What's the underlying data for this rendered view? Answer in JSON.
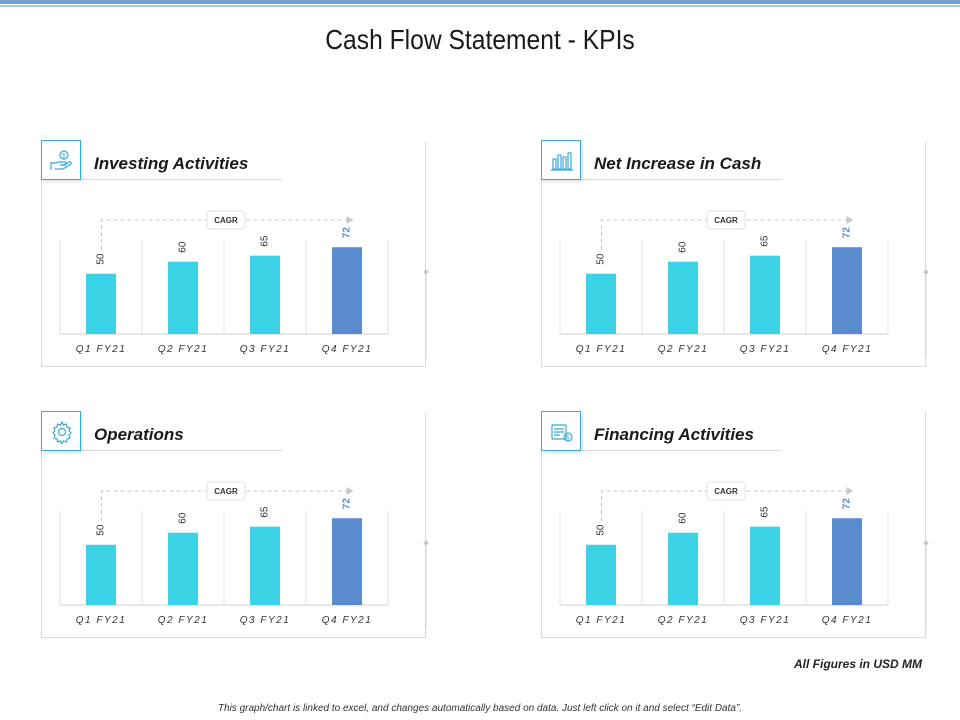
{
  "page": {
    "title": "Cash Flow Statement - KPIs",
    "footer_note": "All Figures in USD MM",
    "disclaimer": "This graph/chart is linked to excel, and changes automatically based on data. Just left click on it and select “Edit Data”."
  },
  "colors": {
    "bar": "#3dd3e6",
    "highlight": "#5b8bcf",
    "accent_border": "#3aa9d9"
  },
  "panels": [
    {
      "title": "Investing Activities",
      "icon": "hand-coin-icon",
      "cagr_label": "CAGR"
    },
    {
      "title": "Net Increase in Cash",
      "icon": "bar-graph-icon",
      "cagr_label": "CAGR"
    },
    {
      "title": "Operations",
      "icon": "gear-icon",
      "cagr_label": "CAGR"
    },
    {
      "title": "Financing Activities",
      "icon": "register-coin-icon",
      "cagr_label": "CAGR"
    }
  ],
  "chart_data": [
    {
      "type": "bar",
      "title": "Investing Activities",
      "categories": [
        "Q1 FY21",
        "Q2 FY21",
        "Q3 FY21",
        "Q4 FY21"
      ],
      "values": [
        50,
        60,
        65,
        72
      ],
      "highlight_index": 3,
      "ylim": [
        0,
        100
      ]
    },
    {
      "type": "bar",
      "title": "Net Increase in Cash",
      "categories": [
        "Q1 FY21",
        "Q2 FY21",
        "Q3 FY21",
        "Q4 FY21"
      ],
      "values": [
        50,
        60,
        65,
        72
      ],
      "highlight_index": 3,
      "ylim": [
        0,
        100
      ]
    },
    {
      "type": "bar",
      "title": "Operations",
      "categories": [
        "Q1 FY21",
        "Q2 FY21",
        "Q3 FY21",
        "Q4 FY21"
      ],
      "values": [
        50,
        60,
        65,
        72
      ],
      "highlight_index": 3,
      "ylim": [
        0,
        100
      ]
    },
    {
      "type": "bar",
      "title": "Financing Activities",
      "categories": [
        "Q1 FY21",
        "Q2 FY21",
        "Q3 FY21",
        "Q4 FY21"
      ],
      "values": [
        50,
        60,
        65,
        72
      ],
      "highlight_index": 3,
      "ylim": [
        0,
        100
      ]
    }
  ]
}
